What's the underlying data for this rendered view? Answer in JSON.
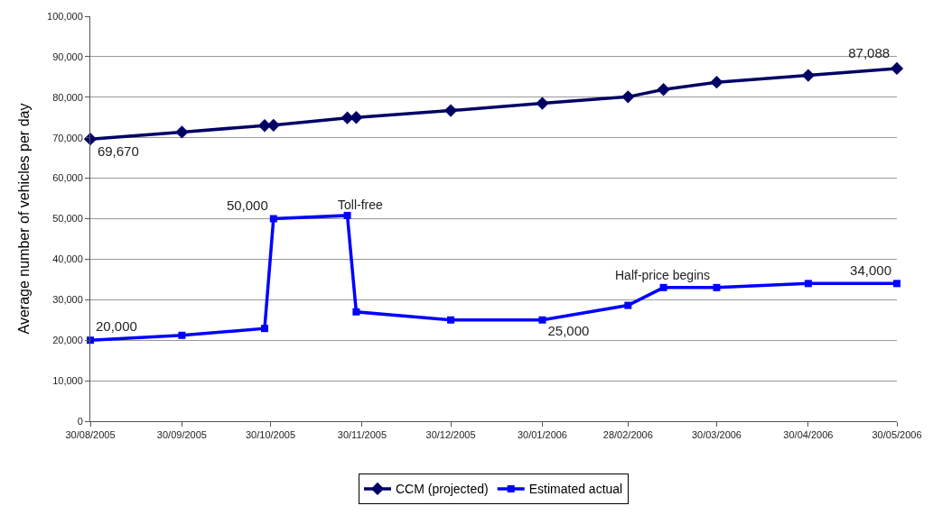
{
  "chart_data": {
    "type": "line",
    "ylabel": "Average number of vehicles per day",
    "xlim": [
      "2005-08-30",
      "2006-05-30"
    ],
    "xticks": [
      {
        "value": "2005-08-30",
        "label": "30/08/2005"
      },
      {
        "value": "2005-09-30",
        "label": "30/09/2005"
      },
      {
        "value": "2005-10-30",
        "label": "30/10/2005"
      },
      {
        "value": "2005-11-30",
        "label": "30/11/2005"
      },
      {
        "value": "2005-12-30",
        "label": "30/12/2005"
      },
      {
        "value": "2006-01-30",
        "label": "30/01/2006"
      },
      {
        "value": "2006-02-28",
        "label": "28/02/2006"
      },
      {
        "value": "2006-03-30",
        "label": "30/03/2006"
      },
      {
        "value": "2006-04-30",
        "label": "30/04/2006"
      },
      {
        "value": "2006-05-30",
        "label": "30/05/2006"
      }
    ],
    "ylim": [
      0,
      100000
    ],
    "yticks": [
      {
        "value": 0,
        "label": "0"
      },
      {
        "value": 10000,
        "label": "10,000"
      },
      {
        "value": 20000,
        "label": "20,000"
      },
      {
        "value": 30000,
        "label": "30,000"
      },
      {
        "value": 40000,
        "label": "40,000"
      },
      {
        "value": 50000,
        "label": "50,000"
      },
      {
        "value": 60000,
        "label": "60,000"
      },
      {
        "value": 70000,
        "label": "70,000"
      },
      {
        "value": 80000,
        "label": "80,000"
      },
      {
        "value": 90000,
        "label": "90,000"
      },
      {
        "value": 100000,
        "label": "100,000"
      }
    ],
    "x": [
      "2005-08-30",
      "2005-09-30",
      "2005-10-28",
      "2005-10-31",
      "2005-11-25",
      "2005-11-28",
      "2005-12-30",
      "2006-01-30",
      "2006-02-28",
      "2006-03-12",
      "2006-03-30",
      "2006-04-30",
      "2006-05-30"
    ],
    "series": [
      {
        "name": "CCM (projected)",
        "color": "#000066",
        "marker": "diamond",
        "values": [
          69670,
          71400,
          73000,
          73100,
          74900,
          75000,
          76700,
          78500,
          80100,
          81900,
          83700,
          85400,
          87088
        ],
        "value_labels": [
          "69,670",
          null,
          null,
          null,
          null,
          null,
          null,
          null,
          null,
          null,
          null,
          null,
          "87,088"
        ]
      },
      {
        "name": "Estimated actual",
        "color": "#0000ff",
        "marker": "square",
        "values": [
          20000,
          21200,
          22900,
          50000,
          50800,
          27000,
          25000,
          25000,
          28600,
          33000,
          33000,
          34000,
          34000
        ],
        "value_labels": [
          "20,000",
          null,
          null,
          "50,000",
          null,
          null,
          null,
          "25,000",
          null,
          null,
          null,
          null,
          "34,000"
        ]
      }
    ],
    "annotations": [
      "Toll-free",
      "Half-price begins"
    ],
    "grid": "y",
    "legend": "bottom"
  }
}
